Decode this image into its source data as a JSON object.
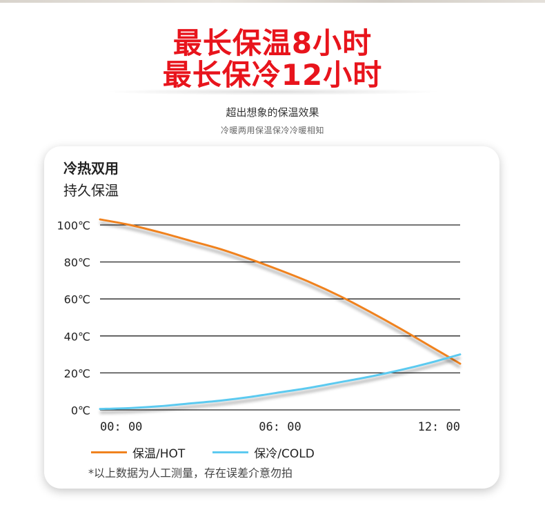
{
  "headline": {
    "line1": "最长保温8小时",
    "line2": "最长保冷12小时"
  },
  "subtitle": {
    "main": "超出想象的保温效果",
    "sub": "冷暖两用保温保冷冷暖相知"
  },
  "card": {
    "title_line1": "冷热双用",
    "title_line2": "持久保温",
    "note": "*以上数据为人工测量，存在误差介意勿拍"
  },
  "colors": {
    "headline": "#e8141c",
    "hot": "#f0821e",
    "cold": "#5ccaf0",
    "grid": "#222222"
  },
  "chart_data": {
    "type": "line",
    "x_tick_labels": [
      "00: 00",
      "06: 00",
      "12: 00"
    ],
    "y_tick_labels": [
      "100℃",
      "80℃",
      "60℃",
      "40℃",
      "20℃",
      "0℃"
    ],
    "ylim": [
      0,
      100
    ],
    "xlim": [
      0,
      12
    ],
    "grid": true,
    "legend_position": "bottom",
    "series": [
      {
        "name": "保温/HOT",
        "color": "#f0821e",
        "x": [
          0,
          1,
          2,
          3,
          4,
          5,
          6,
          7,
          8,
          9,
          10,
          11,
          12
        ],
        "y": [
          103,
          100,
          96,
          91.5,
          87,
          81.5,
          75.5,
          69,
          61.5,
          53,
          44,
          34.5,
          25
        ]
      },
      {
        "name": "保冷/COLD",
        "color": "#5ccaf0",
        "x": [
          0,
          1,
          2,
          3,
          4,
          5,
          6,
          7,
          8,
          9,
          10,
          11,
          12
        ],
        "y": [
          0.5,
          1,
          2,
          3.5,
          5,
          7,
          9.5,
          12,
          15,
          18,
          21.5,
          25.5,
          30
        ]
      }
    ]
  }
}
